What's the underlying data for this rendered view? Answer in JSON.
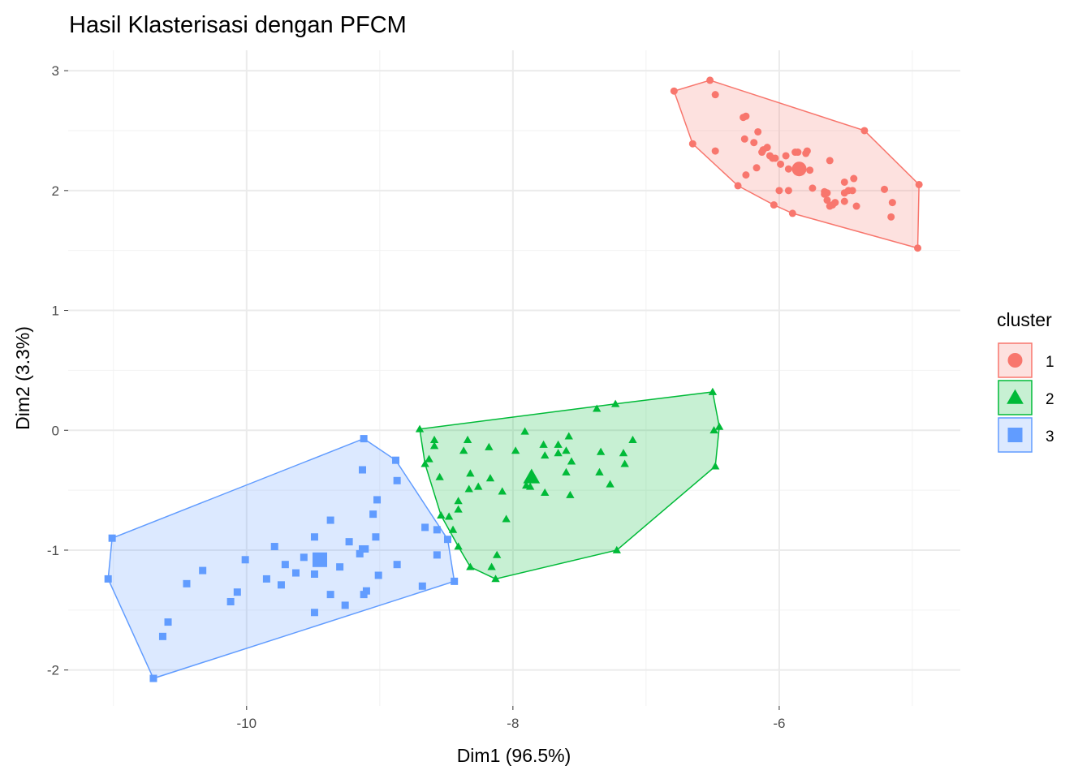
{
  "chart_data": {
    "type": "scatter",
    "title": "Hasil Klasterisasi dengan PFCM",
    "xlabel": "Dim1 (96.5%)",
    "ylabel": "Dim2 (3.3%)",
    "xlim": [
      -11.34,
      -4.64
    ],
    "ylim": [
      -2.3,
      3.17
    ],
    "xticks": [
      -10,
      -8,
      -6
    ],
    "xtick_labels": [
      "-10",
      "-8",
      "-6"
    ],
    "yticks": [
      -2,
      -1,
      0,
      1,
      2,
      3
    ],
    "ytick_labels": [
      "-2",
      "-1",
      "0",
      "1",
      "2",
      "3"
    ],
    "grid": true,
    "legend": {
      "title": "cluster",
      "position": "right"
    },
    "series": [
      {
        "name": "1",
        "shape": "circle",
        "color": "#F8766D",
        "center": [
          -5.85,
          2.18
        ],
        "points": [
          [
            -6.79,
            2.83
          ],
          [
            -6.52,
            2.92
          ],
          [
            -6.48,
            2.8
          ],
          [
            -6.65,
            2.39
          ],
          [
            -6.48,
            2.33
          ],
          [
            -6.31,
            2.04
          ],
          [
            -6.04,
            1.88
          ],
          [
            -5.9,
            1.81
          ],
          [
            -5.36,
            2.5
          ],
          [
            -4.95,
            2.05
          ],
          [
            -4.96,
            1.52
          ],
          [
            -6.27,
            2.61
          ],
          [
            -6.25,
            2.62
          ],
          [
            -6.16,
            2.49
          ],
          [
            -6.26,
            2.43
          ],
          [
            -6.19,
            2.4
          ],
          [
            -6.12,
            2.34
          ],
          [
            -6.09,
            2.36
          ],
          [
            -6.13,
            2.32
          ],
          [
            -6.07,
            2.29
          ],
          [
            -6.05,
            2.27
          ],
          [
            -6.17,
            2.19
          ],
          [
            -6.25,
            2.13
          ],
          [
            -6.03,
            2.27
          ],
          [
            -5.99,
            2.22
          ],
          [
            -5.95,
            2.29
          ],
          [
            -5.93,
            2.18
          ],
          [
            -5.88,
            2.32
          ],
          [
            -5.86,
            2.32
          ],
          [
            -5.8,
            2.31
          ],
          [
            -5.79,
            2.33
          ],
          [
            -5.62,
            2.25
          ],
          [
            -5.77,
            2.17
          ],
          [
            -6.0,
            2.0
          ],
          [
            -5.93,
            2.0
          ],
          [
            -5.75,
            2.02
          ],
          [
            -5.66,
            1.99
          ],
          [
            -5.64,
            1.98
          ],
          [
            -5.62,
            1.87
          ],
          [
            -5.66,
            1.97
          ],
          [
            -5.64,
            1.92
          ],
          [
            -5.6,
            1.88
          ],
          [
            -5.58,
            1.9
          ],
          [
            -5.51,
            1.98
          ],
          [
            -5.45,
            2.0
          ],
          [
            -5.48,
            2.0
          ],
          [
            -5.51,
            1.91
          ],
          [
            -5.42,
            1.87
          ],
          [
            -5.44,
            2.1
          ],
          [
            -5.51,
            2.07
          ],
          [
            -5.21,
            2.01
          ],
          [
            -5.15,
            1.9
          ],
          [
            -5.16,
            1.78
          ]
        ]
      },
      {
        "name": "2",
        "shape": "triangle",
        "color": "#00BA38",
        "center": [
          -7.86,
          -0.39
        ],
        "points": [
          [
            -8.7,
            0.01
          ],
          [
            -8.59,
            -0.08
          ],
          [
            -8.59,
            -0.13
          ],
          [
            -8.63,
            -0.24
          ],
          [
            -8.66,
            -0.28
          ],
          [
            -8.55,
            -0.39
          ],
          [
            -8.34,
            -0.08
          ],
          [
            -8.37,
            -0.17
          ],
          [
            -8.18,
            -0.14
          ],
          [
            -7.98,
            -0.17
          ],
          [
            -7.91,
            -0.01
          ],
          [
            -7.77,
            -0.12
          ],
          [
            -7.66,
            -0.12
          ],
          [
            -7.66,
            -0.19
          ],
          [
            -7.76,
            -0.21
          ],
          [
            -7.6,
            -0.17
          ],
          [
            -7.58,
            -0.05
          ],
          [
            -7.56,
            -0.26
          ],
          [
            -7.6,
            -0.35
          ],
          [
            -7.34,
            -0.18
          ],
          [
            -7.17,
            -0.19
          ],
          [
            -7.1,
            -0.08
          ],
          [
            -7.16,
            -0.28
          ],
          [
            -7.35,
            -0.35
          ],
          [
            -7.27,
            -0.45
          ],
          [
            -7.37,
            0.18
          ],
          [
            -7.23,
            0.22
          ],
          [
            -6.5,
            0.32
          ],
          [
            -6.49,
            0.0
          ],
          [
            -6.45,
            0.03
          ],
          [
            -6.48,
            -0.3
          ],
          [
            -7.22,
            -1.0
          ],
          [
            -8.13,
            -1.24
          ],
          [
            -8.16,
            -1.14
          ],
          [
            -8.12,
            -1.04
          ],
          [
            -8.32,
            -1.14
          ],
          [
            -8.41,
            -0.97
          ],
          [
            -8.45,
            -0.83
          ],
          [
            -8.54,
            -0.71
          ],
          [
            -8.48,
            -0.72
          ],
          [
            -8.41,
            -0.66
          ],
          [
            -8.41,
            -0.59
          ],
          [
            -8.32,
            -0.36
          ],
          [
            -8.33,
            -0.49
          ],
          [
            -8.26,
            -0.47
          ],
          [
            -8.17,
            -0.4
          ],
          [
            -8.08,
            -0.51
          ],
          [
            -8.05,
            -0.74
          ],
          [
            -7.76,
            -0.52
          ],
          [
            -7.57,
            -0.54
          ],
          [
            -7.87,
            -0.47
          ],
          [
            -7.9,
            -0.46
          ]
        ]
      },
      {
        "name": "3",
        "shape": "square",
        "color": "#619CFF",
        "center": [
          -9.45,
          -1.08
        ],
        "points": [
          [
            -9.12,
            -0.07
          ],
          [
            -8.88,
            -0.25
          ],
          [
            -9.13,
            -0.33
          ],
          [
            -8.87,
            -0.42
          ],
          [
            -9.02,
            -0.58
          ],
          [
            -9.05,
            -0.7
          ],
          [
            -9.37,
            -0.75
          ],
          [
            -9.49,
            -0.89
          ],
          [
            -9.23,
            -0.93
          ],
          [
            -9.03,
            -0.89
          ],
          [
            -9.13,
            -0.99
          ],
          [
            -9.11,
            -0.99
          ],
          [
            -9.15,
            -1.03
          ],
          [
            -8.66,
            -0.81
          ],
          [
            -8.57,
            -0.83
          ],
          [
            -8.49,
            -0.91
          ],
          [
            -8.57,
            -1.04
          ],
          [
            -8.87,
            -1.12
          ],
          [
            -8.44,
            -1.26
          ],
          [
            -8.68,
            -1.3
          ],
          [
            -9.01,
            -1.21
          ],
          [
            -9.3,
            -1.14
          ],
          [
            -9.1,
            -1.34
          ],
          [
            -9.12,
            -1.37
          ],
          [
            -9.26,
            -1.46
          ],
          [
            -9.37,
            -1.37
          ],
          [
            -9.49,
            -1.52
          ],
          [
            -9.49,
            -1.2
          ],
          [
            -9.63,
            -1.19
          ],
          [
            -9.71,
            -1.12
          ],
          [
            -9.57,
            -1.06
          ],
          [
            -9.79,
            -0.97
          ],
          [
            -10.01,
            -1.08
          ],
          [
            -9.85,
            -1.24
          ],
          [
            -9.74,
            -1.29
          ],
          [
            -10.07,
            -1.35
          ],
          [
            -10.12,
            -1.43
          ],
          [
            -10.33,
            -1.17
          ],
          [
            -10.45,
            -1.28
          ],
          [
            -10.59,
            -1.6
          ],
          [
            -10.63,
            -1.72
          ],
          [
            -10.7,
            -2.07
          ],
          [
            -11.04,
            -1.24
          ],
          [
            -11.01,
            -0.9
          ]
        ]
      }
    ]
  }
}
